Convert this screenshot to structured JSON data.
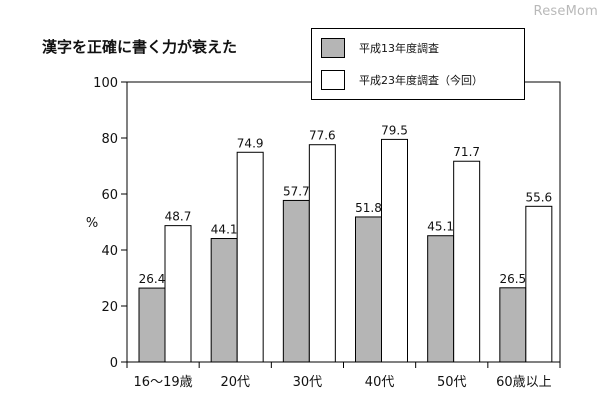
{
  "watermark": "ReseMom",
  "chart_data": {
    "type": "bar",
    "title": "漢字を正確に書く力が衰えた",
    "ylabel": "%",
    "xlabel": "",
    "ylim": [
      0,
      100
    ],
    "yticks": [
      0,
      20,
      40,
      60,
      80,
      100
    ],
    "grid": false,
    "legend_position": "top-right",
    "categories": [
      "16～19歳",
      "20代",
      "30代",
      "40代",
      "50代",
      "60歳以上"
    ],
    "series": [
      {
        "name": "平成13年度調査",
        "values": [
          26.4,
          44.1,
          57.7,
          51.8,
          45.1,
          26.5
        ],
        "color": "#b5b5b5"
      },
      {
        "name": "平成23年度調査（今回）",
        "values": [
          48.7,
          74.9,
          77.6,
          79.5,
          71.7,
          55.6
        ],
        "color": "#ffffff"
      }
    ]
  }
}
